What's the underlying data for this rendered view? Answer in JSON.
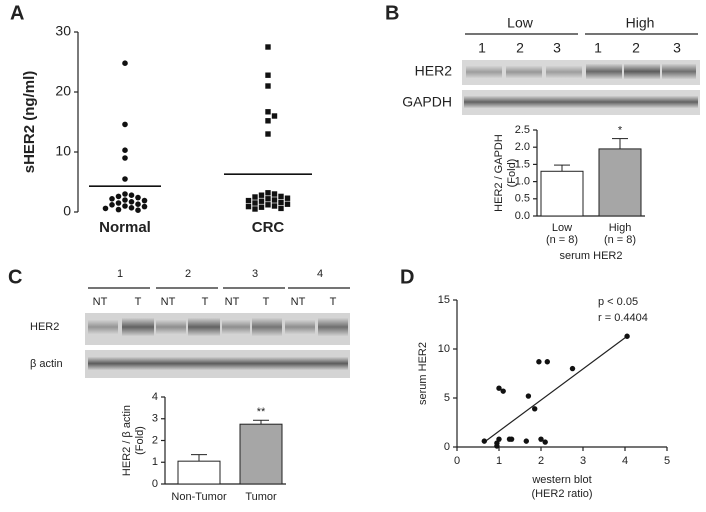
{
  "panel_labels": [
    "A",
    "B",
    "C",
    "D"
  ],
  "blots": [
    {
      "groups": [
        "Low",
        "High"
      ],
      "lanes": [
        "1",
        "2",
        "3",
        "1",
        "2",
        "3"
      ],
      "rows": [
        "HER2",
        "GAPDH"
      ]
    },
    {
      "groups": [
        "1",
        "2",
        "3",
        "4"
      ],
      "lanes": [
        "NT",
        "T",
        "NT",
        "T",
        "NT",
        "T",
        "NT",
        "T"
      ],
      "rows": [
        "HER2",
        "β actin"
      ]
    }
  ],
  "chart_data": [
    {
      "type": "dot",
      "ylabel": "sHER2 (ng/ml)",
      "categories": [
        "Normal",
        "CRC"
      ],
      "markers": [
        "circle",
        "square"
      ],
      "points": [
        [
          24.8,
          14.6,
          10.3,
          9.0,
          5.5,
          3.0,
          2.8,
          2.6,
          2.4,
          2.2,
          2.0,
          1.9,
          1.7,
          1.5,
          1.3,
          1.2,
          1.0,
          0.9,
          0.7,
          0.6,
          0.4,
          0.3
        ],
        [
          27.5,
          22.8,
          21.0,
          16.7,
          16.0,
          15.2,
          13.0,
          3.2,
          3.0,
          2.8,
          2.6,
          2.5,
          2.3,
          2.2,
          2.0,
          1.9,
          1.8,
          1.6,
          1.5,
          1.3,
          1.2,
          1.0,
          0.9,
          0.8,
          0.6,
          0.5
        ]
      ],
      "means": [
        4.3,
        6.3
      ],
      "ylim": [
        0,
        30
      ],
      "yticks": [
        0,
        10,
        20,
        30
      ]
    },
    {
      "type": "bar",
      "ylabel": [
        "HER2 / GAPDH",
        "(Fold)"
      ],
      "categories": [
        "Low",
        "High"
      ],
      "category_notes": [
        "(n = 8)",
        "(n = 8)"
      ],
      "xlabel": "serum HER2",
      "values": [
        1.3,
        1.95
      ],
      "errors": [
        0.18,
        0.3
      ],
      "colors": [
        "#ffffff",
        "#a6a6a6"
      ],
      "annotation": "*",
      "ylim": [
        0,
        2.5
      ],
      "yticks": [
        {
          "value": 0,
          "label": "0.0"
        },
        0.5,
        {
          "value": 1,
          "label": "1.0"
        },
        1.5,
        {
          "value": 2,
          "label": "2.0"
        },
        2.5
      ]
    },
    {
      "type": "bar",
      "ylabel": [
        "HER2 / β actin",
        "(Fold)"
      ],
      "categories": [
        "Non-Tumor",
        "Tumor"
      ],
      "values": [
        1.05,
        2.75
      ],
      "errors": [
        0.3,
        0.18
      ],
      "colors": [
        "#ffffff",
        "#a6a6a6"
      ],
      "annotation": "**",
      "ylim": [
        0,
        4
      ],
      "yticks": [
        0,
        1,
        2,
        3,
        4
      ]
    },
    {
      "type": "scatter",
      "xlabel": [
        "western blot",
        "(HER2 ratio)"
      ],
      "ylabel": "serum HER2",
      "x": [
        0.65,
        0.95,
        1.0,
        1.0,
        1.1,
        0.95,
        1.25,
        1.3,
        1.65,
        1.7,
        1.85,
        1.95,
        2.15,
        2.0,
        2.1,
        2.75,
        4.05
      ],
      "y": [
        0.6,
        0.4,
        0.8,
        6.0,
        5.7,
        0.1,
        0.8,
        0.8,
        0.6,
        5.2,
        3.9,
        8.7,
        8.7,
        0.8,
        0.5,
        8.0,
        11.3
      ],
      "trendline": {
        "x": [
          0.65,
          4.05
        ],
        "y": [
          0.5,
          11.3
        ]
      },
      "annotations": [
        "p < 0.05",
        "r = 0.4404"
      ],
      "xlim": [
        0,
        5
      ],
      "ylim": [
        0,
        15
      ],
      "xticks": [
        0,
        1,
        2,
        3,
        4,
        5
      ],
      "yticks": [
        0,
        5,
        10,
        15
      ]
    }
  ]
}
